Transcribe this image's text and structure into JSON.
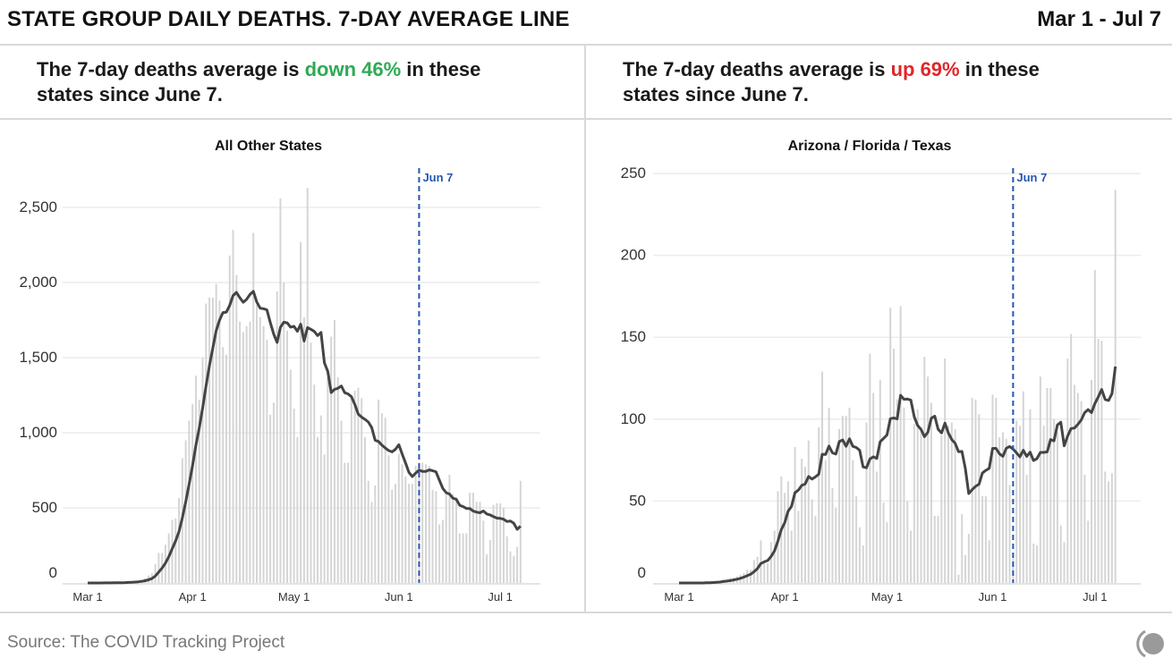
{
  "header": {
    "title": "STATE GROUP DAILY DEATHS. 7-DAY AVERAGE LINE",
    "date_range": "Mar 1 - Jul 7"
  },
  "panels": [
    {
      "sub_pre": "The 7-day deaths average is ",
      "sub_change": "down 46%",
      "sub_post": " in these",
      "sub_line2": "states since June 7.",
      "change_color": "#2eaa55"
    },
    {
      "sub_pre": "The 7-day deaths average is ",
      "sub_change": "up 69%",
      "sub_post": " in these",
      "sub_line2": "states since June 7.",
      "change_color": "#e0262b"
    }
  ],
  "footer": {
    "source": "Source: The COVID Tracking Project",
    "logo_icon": "covid-tracking-project-logo"
  },
  "colors": {
    "bars": "#d5d5d5",
    "line": "#444444",
    "marker": "#2457b0",
    "grid": "#ececec"
  },
  "chart_data": [
    {
      "type": "bar",
      "title": "All Other States",
      "x_range": [
        "Mar 1",
        "Jul 7"
      ],
      "x_ticks": [
        {
          "label": "Mar 1",
          "day": 0
        },
        {
          "label": "Apr 1",
          "day": 31
        },
        {
          "label": "May 1",
          "day": 61
        },
        {
          "label": "Jun 1",
          "day": 92
        },
        {
          "label": "Jul 1",
          "day": 122
        }
      ],
      "y_ticks": [
        0,
        500,
        1000,
        1500,
        2000,
        2500
      ],
      "y_tick_labels": [
        "0",
        "500",
        "1,000",
        "1,500",
        "2,000",
        "2,500"
      ],
      "ylim": [
        0,
        2700
      ],
      "grid": true,
      "marker": {
        "label": "Jun 7",
        "day": 98
      },
      "line": "7-day average",
      "values": [
        0,
        0,
        0,
        0,
        1,
        1,
        1,
        2,
        2,
        3,
        4,
        5,
        7,
        9,
        12,
        16,
        22,
        32,
        50,
        65,
        125,
        200,
        200,
        255,
        330,
        420,
        430,
        565,
        830,
        950,
        1080,
        1190,
        1380,
        1220,
        1500,
        1860,
        1900,
        1900,
        1990,
        1880,
        1570,
        1520,
        2180,
        2350,
        2050,
        1740,
        1670,
        1710,
        1740,
        2330,
        1850,
        1770,
        1710,
        1620,
        1120,
        1200,
        1940,
        2560,
        2000,
        1680,
        1420,
        1160,
        970,
        2270,
        1770,
        2630,
        1600,
        1320,
        970,
        1115,
        855,
        1370,
        1640,
        1750,
        1370,
        1080,
        800,
        800,
        1240,
        1280,
        1300,
        1230,
        970,
        680,
        540,
        650,
        1220,
        1130,
        1100,
        850,
        620,
        660,
        860,
        790,
        710,
        660,
        660,
        780,
        800,
        800,
        790,
        780,
        620,
        610,
        390,
        420,
        600,
        720,
        590,
        570,
        330,
        330,
        330,
        600,
        600,
        540,
        540,
        415,
        190,
        285,
        520,
        530,
        530,
        500,
        310,
        210,
        180,
        240,
        680
      ]
    },
    {
      "type": "bar",
      "title": "Arizona / Florida / Texas",
      "x_range": [
        "Mar 1",
        "Jul 7"
      ],
      "x_ticks": [
        {
          "label": "Mar 1",
          "day": 0
        },
        {
          "label": "Apr 1",
          "day": 31
        },
        {
          "label": "May 1",
          "day": 61
        },
        {
          "label": "Jun 1",
          "day": 92
        },
        {
          "label": "Jul 1",
          "day": 122
        }
      ],
      "y_ticks": [
        0,
        50,
        100,
        150,
        200,
        250
      ],
      "y_tick_labels": [
        "0",
        "50",
        "100",
        "150",
        "200",
        "250"
      ],
      "ylim": [
        0,
        255
      ],
      "grid": true,
      "marker": {
        "label": "Jun 7",
        "day": 98
      },
      "line": "7-day average",
      "values": [
        0,
        0,
        0,
        0,
        0,
        0,
        0,
        0,
        1,
        0,
        1,
        1,
        1,
        2,
        2,
        3,
        3,
        4,
        5,
        6,
        8,
        8,
        14,
        16,
        26,
        12,
        12,
        25,
        32,
        56,
        65,
        55,
        62,
        32,
        83,
        44,
        76,
        71,
        87,
        51,
        41,
        95,
        129,
        75,
        107,
        58,
        46,
        94,
        102,
        102,
        107,
        75,
        53,
        34,
        23,
        98,
        140,
        116,
        68,
        124,
        49,
        37,
        168,
        143,
        112,
        169,
        107,
        50,
        32,
        97,
        106,
        95,
        138,
        126,
        110,
        41,
        41,
        90,
        137,
        96,
        98,
        94,
        5,
        42,
        17,
        30,
        113,
        112,
        103,
        53,
        53,
        26,
        115,
        113,
        89,
        92,
        88,
        60,
        15,
        99,
        96,
        117,
        66,
        106,
        24,
        23,
        126,
        96,
        119,
        119,
        100,
        92,
        35,
        25,
        137,
        152,
        121,
        116,
        111,
        66,
        38,
        124,
        191,
        149,
        148,
        68,
        62,
        67,
        240
      ]
    }
  ]
}
